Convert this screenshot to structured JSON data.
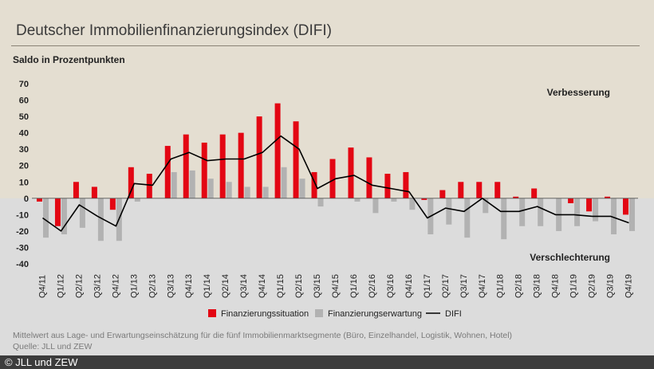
{
  "title": "Deutscher Immobilienfinanzierungsindex (DIFI)",
  "footnote": "Mittelwert aus Lage- und Erwartungseinschätzung für die fünf Immobilienmarktsegmente (Büro, Einzelhandel, Logistik, Wohnen, Hotel)",
  "source": "Quelle: JLL und ZEW",
  "credit": "© JLL und ZEW",
  "colors": {
    "situation": "#e30613",
    "erwartung": "#b2b2b2",
    "difi": "#000000",
    "positive_bg": "#e4ded1",
    "negative_bg": "#dcdcdc"
  },
  "chart_data": {
    "type": "bar",
    "ylabel": "Saldo in Prozentpunkten",
    "ylim": [
      -40,
      70
    ],
    "yticks": [
      70,
      60,
      50,
      40,
      30,
      20,
      10,
      0,
      -10,
      -20,
      -30,
      -40
    ],
    "annotations": {
      "top": "Verbesserung",
      "bottom": "Verschlechterung"
    },
    "legend": [
      "Finanzierungssituation",
      "Finanzierungserwartung",
      "DIFI"
    ],
    "categories": [
      "Q4/11",
      "Q1/12",
      "Q2/12",
      "Q3/12",
      "Q4/12",
      "Q1/13",
      "Q2/13",
      "Q3/13",
      "Q4/13",
      "Q1/14",
      "Q2/14",
      "Q3/14",
      "Q4/14",
      "Q1/15",
      "Q2/15",
      "Q3/15",
      "Q4/15",
      "Q1/16",
      "Q2/16",
      "Q3/16",
      "Q4/16",
      "Q1/17",
      "Q2/17",
      "Q3/17",
      "Q4/17",
      "Q1/18",
      "Q2/18",
      "Q3/18",
      "Q4/18",
      "Q1/19",
      "Q2/19",
      "Q3/19",
      "Q4/19"
    ],
    "series": [
      {
        "name": "Finanzierungssituation",
        "type": "bar",
        "values": [
          -2,
          -17,
          10,
          7,
          -7,
          19,
          15,
          32,
          39,
          34,
          39,
          40,
          50,
          58,
          47,
          16,
          24,
          31,
          25,
          15,
          16,
          -1,
          5,
          10,
          10,
          10,
          1,
          6,
          0,
          -3,
          -8,
          1,
          -10
        ]
      },
      {
        "name": "Finanzierungserwartung",
        "type": "bar",
        "values": [
          -24,
          -22,
          -18,
          -26,
          -26,
          -2,
          0,
          16,
          17,
          12,
          10,
          7,
          7,
          19,
          12,
          -5,
          0,
          -2,
          -9,
          -2,
          -7,
          -22,
          -16,
          -24,
          -9,
          -25,
          -17,
          -17,
          -20,
          -17,
          -14,
          -22,
          -20
        ]
      },
      {
        "name": "DIFI",
        "type": "line",
        "values": [
          -12,
          -20,
          -4,
          -11,
          -17,
          9,
          8,
          24,
          28,
          23,
          24,
          24,
          28,
          38,
          30,
          6,
          12,
          14,
          8,
          6,
          4,
          -12,
          -6,
          -8,
          0,
          -8,
          -8,
          -5,
          -10,
          -10,
          -11,
          -11,
          -15
        ]
      }
    ]
  }
}
